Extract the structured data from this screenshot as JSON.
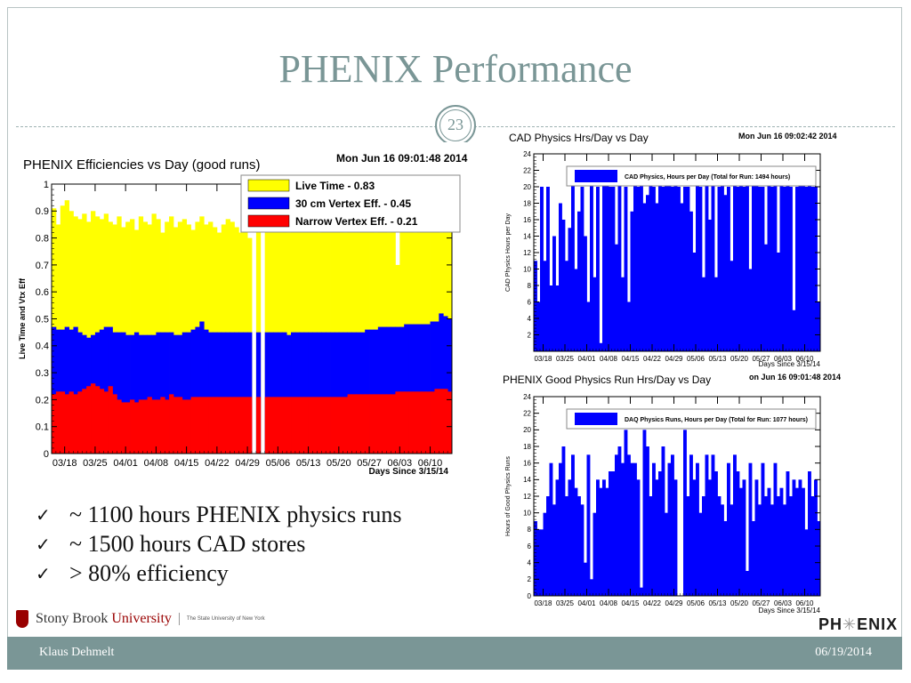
{
  "slide": {
    "title": "PHENIX Performance",
    "page_number": "23",
    "footer_left": "Klaus Dehmelt",
    "footer_right": "06/19/2014"
  },
  "bullets": [
    "~ 1100 hours PHENIX physics runs",
    "~ 1500 hours CAD stores",
    "> 80% efficiency"
  ],
  "logos": {
    "university_main": "Stony Brook",
    "university_word": "University",
    "university_sub": "The State University of New York",
    "phenix_left": "PH",
    "phenix_right": "ENIX"
  },
  "chart_data": [
    {
      "type": "bar",
      "title": "PHENIX Efficiencies vs Day (good runs)",
      "timestamp": "Mon Jun 16 09:01:48 2014",
      "xlabel": "Days Since 3/15/14",
      "ylabel": "Live Time and Vtx Eff",
      "xlim": [
        0,
        92
      ],
      "ylim": [
        0,
        1
      ],
      "yticks": [
        0,
        0.1,
        0.2,
        0.3,
        0.4,
        0.5,
        0.6,
        0.7,
        0.8,
        0.9,
        1
      ],
      "ytick_labels": [
        "0",
        "0.1",
        "0.2",
        "0.3",
        "0.4",
        "0.5",
        "0.6",
        "0.7",
        "0.8",
        "0.9",
        "1"
      ],
      "xticks": [
        3,
        10,
        17,
        24,
        31,
        38,
        45,
        52,
        59,
        66,
        73,
        80,
        87
      ],
      "xtick_labels": [
        "03/18",
        "03/25",
        "04/01",
        "04/08",
        "04/15",
        "04/22",
        "04/29",
        "05/06",
        "05/13",
        "05/20",
        "05/27",
        "06/03",
        "06/10"
      ],
      "legend_position": "top-right",
      "series": [
        {
          "name": "Live Time - 0.83",
          "color": "#ffff00",
          "values": [
            0.91,
            0.85,
            0.92,
            0.94,
            0.9,
            0.88,
            0.87,
            0.89,
            0.86,
            0.9,
            0.88,
            0.87,
            0.89,
            0.86,
            0.85,
            0.88,
            0.84,
            0.86,
            0.87,
            0.83,
            0.88,
            0.86,
            0.85,
            0.89,
            0.87,
            0.82,
            0.86,
            0.88,
            0.84,
            0.86,
            0.87,
            0.85,
            0.83,
            0.86,
            0.88,
            0.85,
            0.86,
            0.84,
            0.82,
            0.85,
            0.87,
            0.86,
            0.84,
            0.82,
            0.84,
            0.8,
            0.0,
            0.85,
            0.0,
            0.86,
            0.83,
            0.85,
            0.84,
            0.86,
            0.82,
            0.85,
            0.84,
            0.86,
            0.83,
            0.84,
            0.85,
            0.82,
            0.84,
            0.86,
            0.83,
            0.84,
            0.85,
            0.82,
            0.85,
            0.84,
            0.86,
            0.83,
            0.84,
            0.85,
            0.82,
            0.84,
            0.86,
            0.82,
            0.84,
            0.7,
            0.86,
            0.84,
            0.85,
            0.82,
            0.84,
            0.86,
            0.83,
            0.84,
            0.85,
            0.82,
            0.84,
            0.83
          ]
        },
        {
          "name": "30 cm Vertex Eff. - 0.45",
          "color": "#0000ff",
          "values": [
            0.47,
            0.46,
            0.46,
            0.47,
            0.46,
            0.47,
            0.45,
            0.44,
            0.43,
            0.44,
            0.45,
            0.46,
            0.47,
            0.47,
            0.45,
            0.45,
            0.45,
            0.44,
            0.44,
            0.45,
            0.44,
            0.44,
            0.44,
            0.44,
            0.45,
            0.45,
            0.45,
            0.45,
            0.44,
            0.44,
            0.45,
            0.45,
            0.46,
            0.47,
            0.49,
            0.46,
            0.45,
            0.45,
            0.45,
            0.45,
            0.45,
            0.45,
            0.45,
            0.45,
            0.45,
            0.45,
            0.0,
            0.45,
            0.0,
            0.45,
            0.45,
            0.45,
            0.45,
            0.45,
            0.44,
            0.45,
            0.45,
            0.45,
            0.45,
            0.45,
            0.45,
            0.45,
            0.45,
            0.45,
            0.45,
            0.45,
            0.45,
            0.45,
            0.45,
            0.45,
            0.45,
            0.45,
            0.46,
            0.46,
            0.46,
            0.47,
            0.47,
            0.47,
            0.47,
            0.47,
            0.47,
            0.48,
            0.48,
            0.48,
            0.48,
            0.48,
            0.48,
            0.49,
            0.49,
            0.52,
            0.51,
            0.5
          ]
        },
        {
          "name": "Narrow Vertex Eff. - 0.21",
          "color": "#ff0000",
          "values": [
            0.22,
            0.23,
            0.23,
            0.22,
            0.23,
            0.22,
            0.23,
            0.24,
            0.25,
            0.26,
            0.25,
            0.24,
            0.23,
            0.25,
            0.22,
            0.2,
            0.19,
            0.19,
            0.2,
            0.19,
            0.2,
            0.2,
            0.21,
            0.2,
            0.2,
            0.21,
            0.2,
            0.22,
            0.21,
            0.21,
            0.2,
            0.2,
            0.21,
            0.21,
            0.21,
            0.21,
            0.21,
            0.21,
            0.21,
            0.21,
            0.21,
            0.21,
            0.21,
            0.21,
            0.21,
            0.21,
            0.0,
            0.21,
            0.0,
            0.21,
            0.21,
            0.21,
            0.21,
            0.21,
            0.21,
            0.21,
            0.21,
            0.21,
            0.21,
            0.21,
            0.21,
            0.21,
            0.21,
            0.21,
            0.21,
            0.21,
            0.21,
            0.21,
            0.22,
            0.22,
            0.22,
            0.22,
            0.22,
            0.22,
            0.22,
            0.22,
            0.22,
            0.22,
            0.22,
            0.23,
            0.23,
            0.23,
            0.23,
            0.23,
            0.23,
            0.23,
            0.23,
            0.23,
            0.24,
            0.24,
            0.24,
            0.23
          ]
        }
      ]
    },
    {
      "type": "bar",
      "title": "CAD Physics Hrs/Day vs Day",
      "timestamp": "Mon Jun 16 09:02:42 2014",
      "xlabel": "Days Since 3/15/14",
      "ylabel": "CAD Physics Hours per Day",
      "xlim": [
        0,
        92
      ],
      "ylim": [
        0,
        24
      ],
      "yticks": [
        2,
        4,
        6,
        8,
        10,
        12,
        14,
        16,
        18,
        20,
        22,
        24
      ],
      "ytick_labels": [
        "2",
        "4",
        "6",
        "8",
        "10",
        "12",
        "14",
        "16",
        "18",
        "20",
        "22",
        "24"
      ],
      "xticks": [
        3,
        10,
        17,
        24,
        31,
        38,
        45,
        52,
        59,
        66,
        73,
        80,
        87
      ],
      "xtick_labels": [
        "03/18",
        "03/25",
        "04/01",
        "04/08",
        "04/15",
        "04/22",
        "04/29",
        "05/06",
        "05/13",
        "05/20",
        "05/27",
        "06/03",
        "06/10"
      ],
      "legend_position": "top",
      "series": [
        {
          "name": "CAD Physics, Hours per Day (Total for Run: 1494 hours)",
          "color": "#0000ff",
          "values": [
            11,
            6,
            20,
            11,
            20,
            8,
            14,
            8,
            18,
            16,
            11,
            15,
            21,
            10,
            17,
            20,
            14,
            6,
            22,
            9,
            20,
            1,
            22,
            21,
            20,
            20,
            13,
            22,
            9,
            20,
            6,
            17,
            21,
            20,
            21,
            18,
            19,
            21,
            20,
            18,
            22,
            20,
            21,
            21,
            20,
            21,
            20,
            18,
            20,
            20,
            17,
            12,
            22,
            20,
            9,
            22,
            16,
            21,
            9,
            20,
            22,
            19,
            20,
            11,
            21,
            20,
            22,
            20,
            21,
            10,
            21,
            22,
            20,
            20,
            13,
            21,
            20,
            22,
            12,
            22,
            20,
            21,
            20,
            5,
            20,
            21,
            22,
            20,
            21,
            20,
            20,
            6
          ]
        }
      ]
    },
    {
      "type": "bar",
      "title": "PHENIX Good Physics Run Hrs/Day vs Day",
      "timestamp": "on Jun 16 09:01:48 2014",
      "xlabel": "Days Since 3/15/14",
      "ylabel": "Hours of Good Physics Runs",
      "xlim": [
        0,
        92
      ],
      "ylim": [
        0,
        24
      ],
      "yticks": [
        0,
        2,
        4,
        6,
        8,
        10,
        12,
        14,
        16,
        18,
        20,
        22,
        24
      ],
      "ytick_labels": [
        "0",
        "2",
        "4",
        "6",
        "8",
        "10",
        "12",
        "14",
        "16",
        "18",
        "20",
        "22",
        "24"
      ],
      "xticks": [
        3,
        10,
        17,
        24,
        31,
        38,
        45,
        52,
        59,
        66,
        73,
        80,
        87
      ],
      "xtick_labels": [
        "03/18",
        "03/25",
        "04/01",
        "04/08",
        "04/15",
        "04/22",
        "04/29",
        "05/06",
        "05/13",
        "05/20",
        "05/27",
        "06/03",
        "06/10"
      ],
      "legend_position": "top",
      "series": [
        {
          "name": "DAQ Physics Runs, Hours per Day (Total for Run: 1077 hours)",
          "color": "#0000ff",
          "values": [
            9,
            8,
            8,
            10,
            12,
            16,
            11,
            14,
            16,
            18,
            12,
            14,
            17,
            13,
            12,
            11,
            4,
            17,
            2,
            10,
            14,
            13,
            14,
            13,
            15,
            15,
            17,
            18,
            16,
            20,
            17,
            16,
            16,
            14,
            1,
            20,
            18,
            12,
            16,
            14,
            15,
            18,
            10,
            16,
            17,
            14,
            0,
            0,
            20,
            12,
            17,
            14,
            16,
            10,
            12,
            17,
            14,
            17,
            15,
            12,
            11,
            9,
            16,
            11,
            17,
            15,
            13,
            14,
            3,
            16,
            9,
            14,
            11,
            16,
            12,
            13,
            11,
            16,
            12,
            13,
            11,
            15,
            12,
            14,
            13,
            14,
            13,
            8,
            15,
            12,
            14,
            9
          ]
        }
      ]
    }
  ]
}
